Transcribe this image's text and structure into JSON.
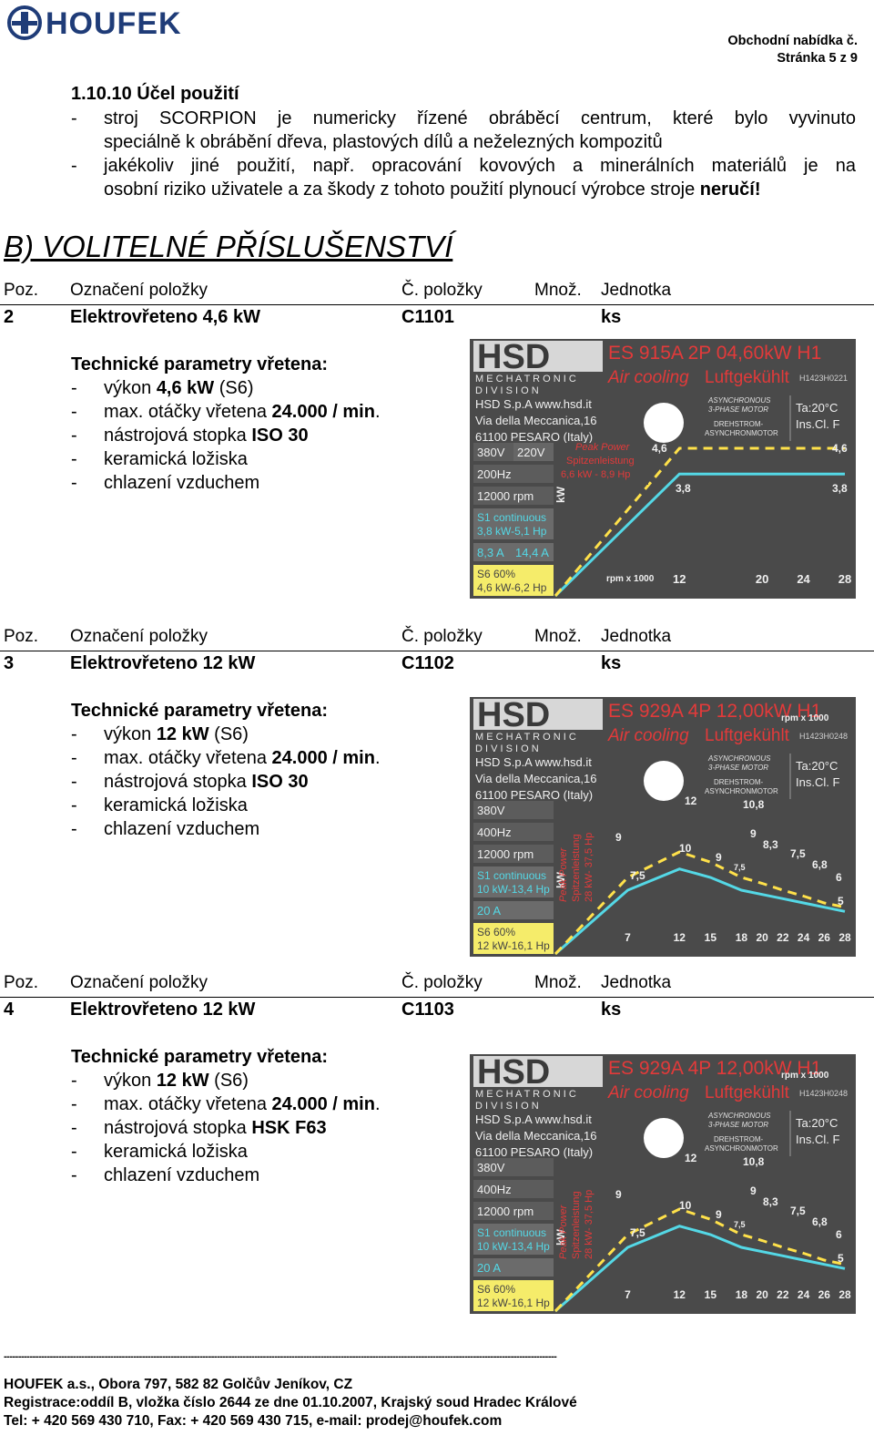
{
  "header": {
    "logo_text": "HOUFEK",
    "offer_label": "Obchodní nabídka č.",
    "page_label": "Stránka 5 z 9"
  },
  "purpose": {
    "heading": "1.10.10 Účel použití",
    "dash": "-",
    "item1_line1": "stroj SCORPION je numericky řízené obráběcí centrum, které bylo vyvinuto",
    "item1_line2": "speciálně k obrábění dřeva, plastových dílů a neželezných kompozitů",
    "item2_line1": "jakékoliv jiné použití, např. opracování kovových a minerálních materiálů je na",
    "item2_line2_a": "osobní riziko uživatele a za škody z tohoto použití plynoucí výrobce stroje ",
    "item2_line2_b": "neručí!"
  },
  "section_title": "B) VOLITELNÉ PŘÍSLUŠENSTVÍ",
  "table_headers": {
    "pos": "Poz.",
    "name": "Označení položky",
    "code": "Č. položky",
    "qty": "Množ.",
    "unit": "Jednotka"
  },
  "items": [
    {
      "pos": "2",
      "name": "Elektrovřeteno 4,6 kW",
      "code": "C1101",
      "unit": "ks",
      "params_title": "Technické parametry vřetena:",
      "p1_a": "výkon ",
      "p1_b": "4,6 kW",
      "p1_c": " (S6)",
      "p2_a": "max. otáčky vřetena ",
      "p2_b": "24.000 / min",
      "p3_a": "nástrojová stopka ",
      "p3_b": "ISO 30",
      "p4": "keramická ložiska",
      "p5": "chlazení vzduchem",
      "plate": {
        "brand": "HSD",
        "brand_sub1": "M E C H A T R O N I C",
        "brand_sub2": "D I V I S I O N",
        "model": "ES 915A 2P 04,60kW H1",
        "cooling": "Air cooling",
        "cooling_de": "Luftgekühlt",
        "serial": "H1423H0221",
        "company": "HSD S.p.A  www.hsd.it",
        "addr1": "Via della Meccanica,16",
        "addr2": "61100  PESARO (Italy)",
        "motor1": "ASYNCHRONOUS",
        "motor2": "3-PHASE MOTOR",
        "motor3": "DREHSTROM-",
        "motor4": "ASYNCHRONMOTOR",
        "ta": "Ta:20°C",
        "ins": "Ins.Cl. F",
        "volt": "380V",
        "volt2": "220V",
        "freq": "200Hz",
        "rpm": "12000 rpm",
        "s1_1": "S1 continuous",
        "s1_2": "3,8 kW-5,1 Hp",
        "amp": "8,3 A",
        "amp2": "14,4 A",
        "s6_1": "S6 60%",
        "s6_2": "4,6 kW-6,2 Hp",
        "peak1": "Peak Power",
        "peak2": "Spitzenleistung",
        "peak3": "6,6 kW - 8,9 Hp",
        "kw": "kW",
        "rpm_axis": "rpm x 1000"
      },
      "chart_data": {
        "type": "line",
        "xlabel": "rpm x 1000",
        "ylabel": "kW",
        "x_ticks": [
          "12",
          "20",
          "24",
          "28"
        ],
        "series": [
          {
            "x": [
              0,
              12,
              28
            ],
            "y": [
              0,
              3.8,
              3.8
            ]
          },
          {
            "x": [
              0,
              12,
              28
            ],
            "y": [
              0,
              4.6,
              4.6
            ]
          }
        ],
        "labels": [
          "4,6",
          "4,6",
          "3,8",
          "3,8"
        ]
      }
    },
    {
      "pos": "3",
      "name": "Elektrovřeteno 12 kW",
      "code": "C1102",
      "unit": "ks",
      "params_title": "Technické parametry vřetena:",
      "p1_a": "výkon ",
      "p1_b": "12 kW",
      "p1_c": " (S6)",
      "p2_a": "max. otáčky vřetena ",
      "p2_b": "24.000 / min",
      "p3_a": "nástrojová stopka ",
      "p3_b": "ISO 30",
      "p4": "keramická ložiska",
      "p5": "chlazení vzduchem",
      "plate": {
        "brand": "HSD",
        "brand_sub1": "M E C H A T R O N I C",
        "brand_sub2": "D I V I S I O N",
        "model": "ES 929A 4P 12,00kW H1",
        "cooling": "Air cooling",
        "cooling_de": "Luftgekühlt",
        "serial": "H1423H0248",
        "company": "HSD S.p.A  www.hsd.it",
        "addr1": "Via della Meccanica,16",
        "addr2": "61100  PESARO (Italy)",
        "motor1": "ASYNCHRONOUS",
        "motor2": "3-PHASE MOTOR",
        "motor3": "DREHSTROM-",
        "motor4": "ASYNCHRONMOTOR",
        "ta": "Ta:20°C",
        "ins": "Ins.Cl. F",
        "volt": "380V",
        "volt2": "",
        "freq": "400Hz",
        "rpm": "12000 rpm",
        "s1_1": "S1 continuous",
        "s1_2": "10 kW-13,4 Hp",
        "amp": "20 A",
        "amp2": "",
        "s6_1": "S6 60%",
        "s6_2": "12 kW-16,1 Hp",
        "peak1": "Peak Power",
        "peak2": "Spitzenleistung",
        "peak3": "28 kW- 37,5 Hp",
        "kw": "kW",
        "rpm_axis": "rpm x 1000"
      },
      "chart_data": {
        "type": "line",
        "xlabel": "rpm x 1000",
        "ylabel": "kW",
        "x_ticks": [
          "7",
          "12",
          "15",
          "18",
          "20",
          "22",
          "24",
          "26",
          "28"
        ],
        "series": [
          {
            "x": [
              0,
              7,
              12,
              15,
              18,
              20,
              22,
              24,
              26,
              28
            ],
            "y": [
              0,
              7.5,
              10,
              9,
              7.5,
              7,
              6.5,
              6,
              5.5,
              5
            ]
          },
          {
            "x": [
              0,
              7,
              12,
              15,
              18,
              20,
              22,
              24,
              26,
              28
            ],
            "y": [
              0,
              9,
              12,
              10.8,
              9,
              8.3,
              7.5,
              6.8,
              6,
              5.5
            ]
          }
        ],
        "labels": [
          "12",
          "10,8",
          "9",
          "9",
          "8,3",
          "7,5",
          "6,8",
          "6",
          "5",
          "10",
          "9",
          "7,5",
          "7,5"
        ]
      }
    },
    {
      "pos": "4",
      "name": "Elektrovřeteno 12 kW",
      "code": "C1103",
      "unit": "ks",
      "params_title": "Technické parametry vřetena:",
      "p1_a": "výkon ",
      "p1_b": "12 kW",
      "p1_c": " (S6)",
      "p2_a": "max. otáčky vřetena ",
      "p2_b": "24.000 / min",
      "p3_a": "nástrojová stopka ",
      "p3_b": "HSK F63",
      "p4": "keramická ložiska",
      "p5": "chlazení vzduchem",
      "plate": {
        "brand": "HSD",
        "brand_sub1": "M E C H A T R O N I C",
        "brand_sub2": "D I V I S I O N",
        "model": "ES 929A 4P 12,00kW H1",
        "cooling": "Air cooling",
        "cooling_de": "Luftgekühlt",
        "serial": "H1423H0248",
        "company": "HSD S.p.A  www.hsd.it",
        "addr1": "Via della Meccanica,16",
        "addr2": "61100  PESARO (Italy)",
        "motor1": "ASYNCHRONOUS",
        "motor2": "3-PHASE MOTOR",
        "motor3": "DREHSTROM-",
        "motor4": "ASYNCHRONMOTOR",
        "ta": "Ta:20°C",
        "ins": "Ins.Cl. F",
        "volt": "380V",
        "volt2": "",
        "freq": "400Hz",
        "rpm": "12000 rpm",
        "s1_1": "S1 continuous",
        "s1_2": "10 kW-13,4 Hp",
        "amp": "20 A",
        "amp2": "",
        "s6_1": "S6 60%",
        "s6_2": "12 kW-16,1 Hp",
        "peak1": "Peak Power",
        "peak2": "Spitzenleistung",
        "peak3": "28 kW- 37,5 Hp",
        "kw": "kW",
        "rpm_axis": "rpm x 1000"
      },
      "chart_data": {
        "type": "line",
        "xlabel": "rpm x 1000",
        "ylabel": "kW",
        "x_ticks": [
          "7",
          "12",
          "15",
          "18",
          "20",
          "22",
          "24",
          "26",
          "28"
        ],
        "series": [
          {
            "x": [
              0,
              7,
              12,
              15,
              18,
              20,
              22,
              24,
              26,
              28
            ],
            "y": [
              0,
              7.5,
              10,
              9,
              7.5,
              7,
              6.5,
              6,
              5.5,
              5
            ]
          },
          {
            "x": [
              0,
              7,
              12,
              15,
              18,
              20,
              22,
              24,
              26,
              28
            ],
            "y": [
              0,
              9,
              12,
              10.8,
              9,
              8.3,
              7.5,
              6.8,
              6,
              5.5
            ]
          }
        ],
        "labels": [
          "12",
          "10,8",
          "9",
          "9",
          "8,3",
          "7,5",
          "6,8",
          "6",
          "5",
          "10",
          "9",
          "7,5",
          "7,5"
        ]
      }
    }
  ],
  "footer": {
    "line1": "HOUFEK a.s., Obora 797, 582 82  Golčův Jeníkov, CZ",
    "line2": "Registrace:oddíl B, vložka číslo 2644 ze dne 01.10.2007, Krajský soud Hradec Králové",
    "line3": "Tel: + 420 569 430 710, Fax: + 420 569 430 715, e-mail: prodej@houfek.com"
  },
  "colors": {
    "plate_bg": "#4a4a4a",
    "plate_cell": "#5c5c5c",
    "accent_red": "#e23a3a",
    "curve_cyan": "#54d8e6",
    "curve_yellow": "#ffe14a",
    "s6_yellow": "#f5ec6a",
    "logo_blue": "#1f3c78"
  }
}
